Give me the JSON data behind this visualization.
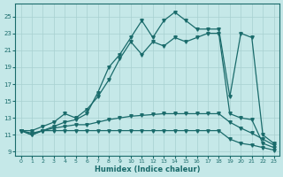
{
  "xlabel": "Humidex (Indice chaleur)",
  "bg_color": "#c5e8e8",
  "grid_color": "#a8d0d0",
  "line_color": "#1a6b6b",
  "xlim": [
    -0.5,
    23.5
  ],
  "ylim": [
    8.5,
    26.5
  ],
  "xticks": [
    0,
    1,
    2,
    3,
    4,
    5,
    6,
    7,
    8,
    9,
    10,
    11,
    12,
    13,
    14,
    15,
    16,
    17,
    18,
    19,
    20,
    21,
    22,
    23
  ],
  "yticks": [
    9,
    11,
    13,
    15,
    17,
    19,
    21,
    23,
    25
  ],
  "line1_y": [
    11.5,
    11.0,
    11.5,
    11.5,
    11.5,
    11.5,
    11.5,
    11.5,
    11.5,
    11.5,
    11.5,
    11.5,
    11.5,
    11.5,
    11.5,
    11.5,
    11.5,
    11.5,
    11.5,
    10.5,
    10.0,
    9.8,
    9.5,
    9.2
  ],
  "line2_y": [
    11.5,
    11.2,
    11.5,
    11.8,
    12.0,
    12.2,
    12.2,
    12.5,
    12.8,
    13.0,
    13.2,
    13.3,
    13.4,
    13.5,
    13.5,
    13.5,
    13.5,
    13.5,
    13.5,
    12.5,
    11.8,
    11.2,
    10.5,
    9.8
  ],
  "line3_y": [
    11.5,
    11.5,
    12.0,
    12.5,
    13.5,
    13.0,
    14.0,
    15.5,
    17.5,
    20.0,
    22.0,
    20.5,
    22.0,
    21.5,
    22.5,
    22.0,
    22.5,
    23.0,
    23.0,
    13.5,
    13.0,
    12.8,
    10.0,
    9.5
  ],
  "line4_y": [
    11.5,
    11.0,
    11.5,
    12.0,
    12.5,
    12.8,
    13.5,
    16.0,
    19.0,
    20.5,
    22.5,
    24.5,
    22.5,
    24.5,
    25.5,
    24.5,
    23.5,
    23.5,
    23.5,
    15.5,
    23.0,
    22.5,
    11.0,
    10.0
  ]
}
